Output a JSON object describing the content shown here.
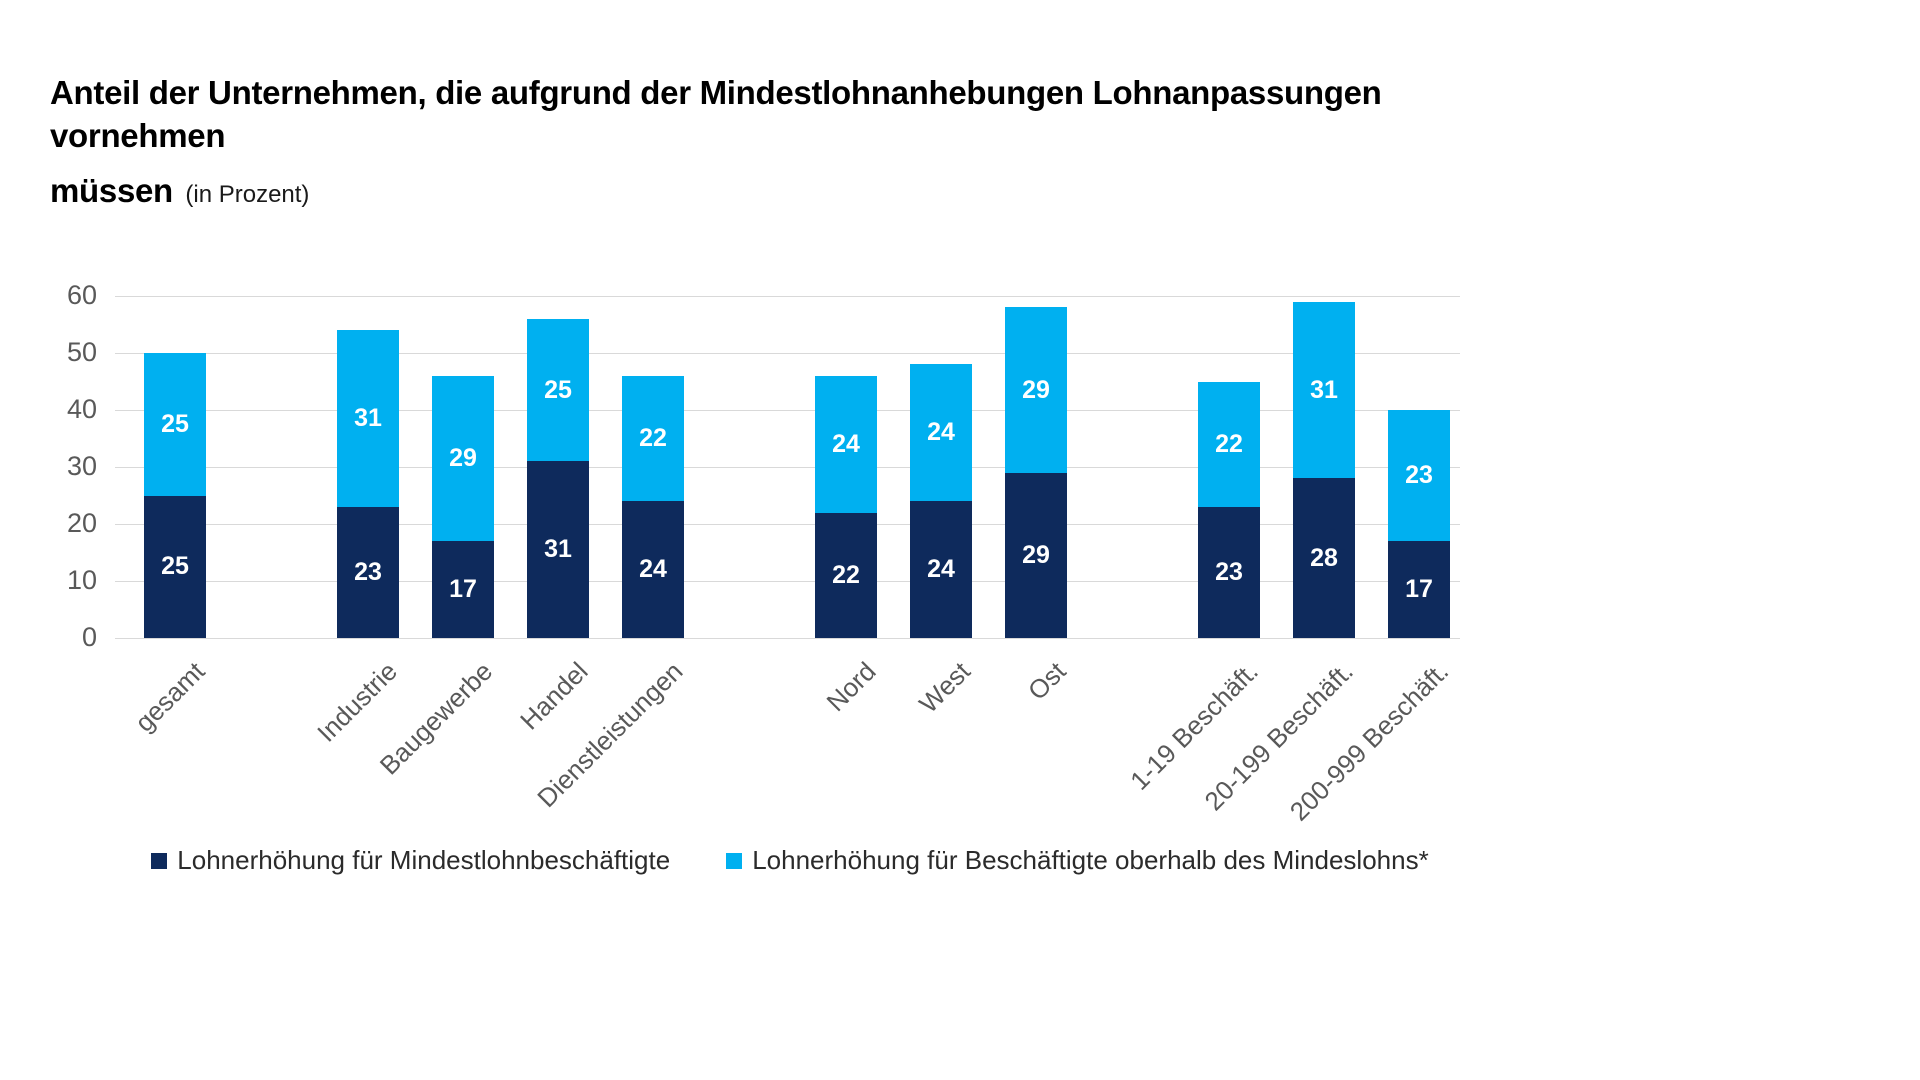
{
  "title": {
    "line1": "Anteil der Unternehmen, die aufgrund der Mindestlohnanhebungen Lohnanpassungen vornehmen",
    "line2_bold": "müssen",
    "line2_note": "(in Prozent)"
  },
  "colors": {
    "series_dark": "#0e2a5c",
    "series_light": "#00b0f0",
    "gridline": "#d9d9d9",
    "axis_text": "#595959",
    "value_label": "#ffffff"
  },
  "chart_data": {
    "type": "bar",
    "stacked": true,
    "title": "Anteil der Unternehmen, die aufgrund der Mindestlohnanhebungen Lohnanpassungen vornehmen müssen (in Prozent)",
    "categories": [
      "gesamt",
      "Industrie",
      "Baugewerbe",
      "Handel",
      "Dienstleistungen",
      "Nord",
      "West",
      "Ost",
      "1-19 Beschäft.",
      "20-199 Beschäft.",
      "200-999 Beschäft."
    ],
    "category_groups": [
      [
        0
      ],
      [
        1,
        2,
        3,
        4
      ],
      [
        5,
        6,
        7
      ],
      [
        8,
        9,
        10
      ]
    ],
    "series": [
      {
        "name": "Lohnerhöhung für Mindestlohnbeschäftigte",
        "color": "#0e2a5c",
        "values": [
          25,
          23,
          17,
          31,
          24,
          22,
          24,
          29,
          23,
          28,
          17
        ]
      },
      {
        "name": "Lohnerhöhung für Beschäftigte oberhalb des Mindeslohns*",
        "color": "#00b0f0",
        "values": [
          25,
          31,
          29,
          25,
          22,
          24,
          24,
          29,
          22,
          31,
          23
        ]
      }
    ],
    "totals": [
      50,
      54,
      46,
      56,
      46,
      46,
      48,
      58,
      45,
      59,
      40
    ],
    "ylim": [
      0,
      60
    ],
    "yticks": [
      0,
      10,
      20,
      30,
      40,
      50,
      60
    ],
    "grid": true,
    "legend_position": "bottom",
    "xlabel": "",
    "ylabel": ""
  }
}
